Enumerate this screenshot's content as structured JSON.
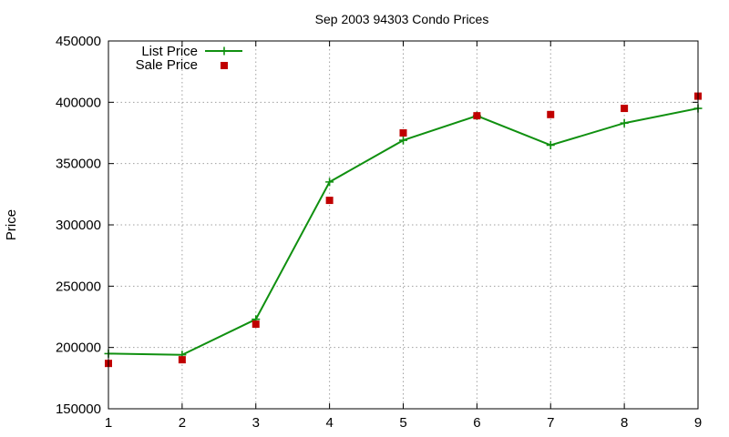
{
  "chart_data": {
    "type": "line",
    "title": "Sep 2003 94303 Condo Prices",
    "xlabel": "",
    "ylabel": "Price",
    "x": [
      1,
      2,
      3,
      4,
      5,
      6,
      7,
      8,
      9
    ],
    "xlim": [
      1,
      9
    ],
    "ylim": [
      150000,
      450000
    ],
    "xticks": [
      "1",
      "2",
      "3",
      "4",
      "5",
      "6",
      "7",
      "8",
      "9"
    ],
    "yticks": [
      "150000",
      "200000",
      "250000",
      "300000",
      "350000",
      "400000",
      "450000"
    ],
    "grid": true,
    "legend_position": "top-left",
    "series": [
      {
        "name": "List Price",
        "style": "line-with-plus-markers",
        "color": "#109010",
        "values": [
          195000,
          194000,
          223000,
          335000,
          369000,
          389000,
          365000,
          383000,
          395000
        ]
      },
      {
        "name": "Sale Price",
        "style": "square-markers",
        "color": "#c00000",
        "values": [
          187000,
          190000,
          219000,
          320000,
          375000,
          389000,
          390000,
          395000,
          405000
        ]
      }
    ]
  }
}
